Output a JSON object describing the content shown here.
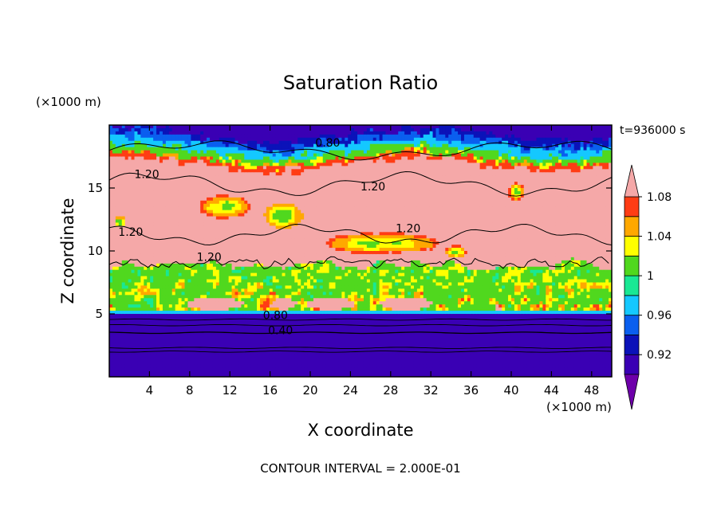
{
  "chart_data": {
    "type": "heatmap",
    "title": "Saturation Ratio",
    "xlabel": "X coordinate",
    "ylabel": "Z coordinate",
    "x_unit": "(×1000 m)",
    "y_unit": "(×1000 m)",
    "time_label": "t=936000 s",
    "footer": "CONTOUR INTERVAL = 2.000E-01",
    "xlim": [
      0,
      50
    ],
    "ylim": [
      0,
      20
    ],
    "x_ticks": [
      4,
      8,
      12,
      16,
      20,
      24,
      28,
      32,
      36,
      40,
      44,
      48
    ],
    "y_ticks": [
      5,
      10,
      15
    ],
    "colorbar": {
      "levels": [
        0.92,
        0.94,
        0.96,
        0.98,
        1.0,
        1.02,
        1.04,
        1.06,
        1.08
      ],
      "tick_labels": [
        "0.92",
        "0.96",
        "1",
        "1.04",
        "1.08"
      ],
      "colors": [
        "#6e00aa",
        "#3a00b4",
        "#0b12b9",
        "#0a5fef",
        "#14c8ff",
        "#19e894",
        "#50d81e",
        "#ffff00",
        "#ffa800",
        "#ff3c14",
        "#f5a8a8"
      ]
    },
    "contour_labels": [
      {
        "text": "0.80",
        "x": 20.5,
        "y": 18.3
      },
      {
        "text": "1.20",
        "x": 2.5,
        "y": 15.8
      },
      {
        "text": "1.20",
        "x": 25.0,
        "y": 14.8
      },
      {
        "text": "1.20",
        "x": 0.9,
        "y": 11.2
      },
      {
        "text": "1.20",
        "x": 28.5,
        "y": 11.5
      },
      {
        "text": "1.20",
        "x": 8.7,
        "y": 9.2
      },
      {
        "text": "0.80",
        "x": 15.3,
        "y": 4.6
      },
      {
        "text": "0.40",
        "x": 15.8,
        "y": 3.4
      }
    ]
  }
}
